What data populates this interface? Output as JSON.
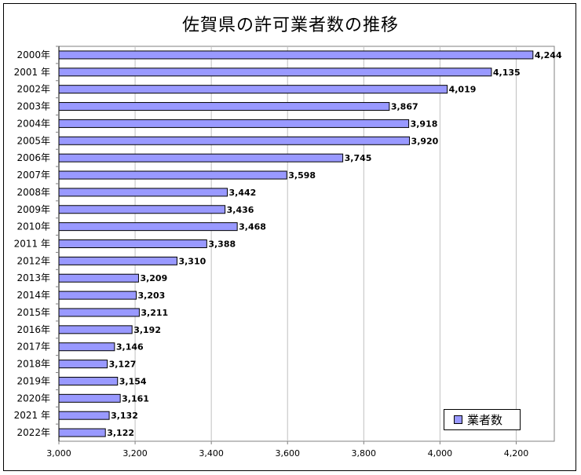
{
  "chart_data": {
    "type": "bar",
    "orientation": "horizontal",
    "title": "佐賀県の許可業者数の推移",
    "categories": [
      "2000年",
      "2001 年",
      "2002年",
      "2003年",
      "2004年",
      "2005年",
      "2006年",
      "2007年",
      "2008年",
      "2009年",
      "2010年",
      "2011 年",
      "2012年",
      "2013年",
      "2014年",
      "2015年",
      "2016年",
      "2017年",
      "2018年",
      "2019年",
      "2020年",
      "2021 年",
      "2022年"
    ],
    "series": [
      {
        "name": "業者数",
        "values": [
          4244,
          4135,
          4019,
          3867,
          3918,
          3920,
          3745,
          3598,
          3442,
          3436,
          3468,
          3388,
          3310,
          3209,
          3203,
          3211,
          3192,
          3146,
          3127,
          3154,
          3161,
          3132,
          3122
        ],
        "value_labels": [
          "4,244",
          "4,135",
          "4,019",
          "3,867",
          "3,918",
          "3,920",
          "3,745",
          "3,598",
          "3,442",
          "3,436",
          "3,468",
          "3,388",
          "3,310",
          "3,209",
          "3,203",
          "3,211",
          "3,192",
          "3,146",
          "3,127",
          "3,154",
          "3,161",
          "3,132",
          "3,122"
        ]
      }
    ],
    "xlim": [
      3000,
      4300
    ],
    "x_ticks": [
      3000,
      3200,
      3400,
      3600,
      3800,
      4000,
      4200
    ],
    "x_tick_labels": [
      "3,000",
      "3,200",
      "3,400",
      "3,600",
      "3,800",
      "4,000",
      "4,200"
    ],
    "grid": "vertical",
    "legend": "bottom-right",
    "colors": {
      "bar": "#9999ff",
      "bar_border": "#000000",
      "grid": "#c0c0c0",
      "axis": "#808080"
    }
  }
}
